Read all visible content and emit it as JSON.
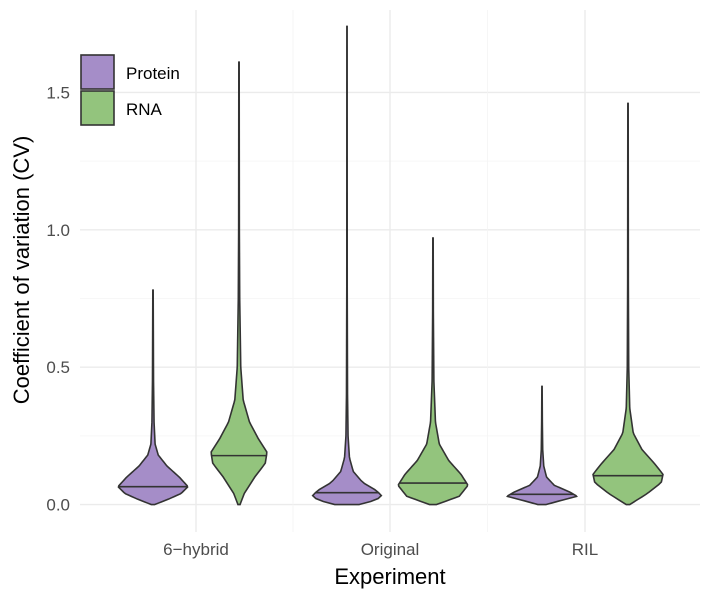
{
  "chart_data": {
    "type": "violin",
    "xlabel": "Experiment",
    "ylabel": "Coefficient of variation (CV)",
    "categories": [
      "6−hybrid",
      "Original",
      "RIL"
    ],
    "y_ticks": [
      "0.0",
      "0.5",
      "1.0",
      "1.5"
    ],
    "y_tick_values": [
      0.0,
      0.5,
      1.0,
      1.5
    ],
    "ylim": [
      -0.1,
      1.8
    ],
    "grid": true,
    "legend_position": "top-left",
    "series": [
      {
        "name": "Protein",
        "color": "#a58dc8",
        "violins": [
          {
            "category": "6−hybrid",
            "min": 0.0,
            "max": 0.78,
            "median": 0.065,
            "profile": [
              [
                0.0,
                0.05
              ],
              [
                0.02,
                0.45
              ],
              [
                0.04,
                0.8
              ],
              [
                0.065,
                1.0
              ],
              [
                0.1,
                0.75
              ],
              [
                0.14,
                0.4
              ],
              [
                0.18,
                0.15
              ],
              [
                0.22,
                0.06
              ],
              [
                0.3,
                0.03
              ],
              [
                0.45,
                0.015
              ],
              [
                0.78,
                0.005
              ]
            ]
          },
          {
            "category": "Original",
            "min": 0.0,
            "max": 1.74,
            "median": 0.043,
            "profile": [
              [
                0.0,
                0.35
              ],
              [
                0.015,
                0.8
              ],
              [
                0.03,
                1.0
              ],
              [
                0.05,
                0.85
              ],
              [
                0.08,
                0.45
              ],
              [
                0.12,
                0.18
              ],
              [
                0.17,
                0.07
              ],
              [
                0.25,
                0.03
              ],
              [
                0.4,
                0.015
              ],
              [
                0.8,
                0.006
              ],
              [
                1.74,
                0.004
              ]
            ]
          },
          {
            "category": "RIL",
            "min": 0.0,
            "max": 0.43,
            "median": 0.037,
            "profile": [
              [
                0.0,
                0.12
              ],
              [
                0.015,
                0.55
              ],
              [
                0.03,
                1.0
              ],
              [
                0.045,
                0.8
              ],
              [
                0.07,
                0.35
              ],
              [
                0.1,
                0.13
              ],
              [
                0.14,
                0.05
              ],
              [
                0.2,
                0.02
              ],
              [
                0.3,
                0.01
              ],
              [
                0.43,
                0.004
              ]
            ]
          }
        ]
      },
      {
        "name": "RNA",
        "color": "#93c47d",
        "violins": [
          {
            "category": "6−hybrid",
            "min": 0.0,
            "max": 1.61,
            "median": 0.178,
            "profile": [
              [
                0.0,
                0.03
              ],
              [
                0.04,
                0.15
              ],
              [
                0.1,
                0.45
              ],
              [
                0.15,
                0.75
              ],
              [
                0.19,
                0.8
              ],
              [
                0.24,
                0.55
              ],
              [
                0.3,
                0.3
              ],
              [
                0.38,
                0.12
              ],
              [
                0.5,
                0.05
              ],
              [
                0.75,
                0.02
              ],
              [
                1.0,
                0.01
              ],
              [
                1.61,
                0.005
              ]
            ]
          },
          {
            "category": "Original",
            "min": 0.0,
            "max": 0.97,
            "median": 0.078,
            "profile": [
              [
                0.0,
                0.1
              ],
              [
                0.03,
                0.75
              ],
              [
                0.07,
                1.0
              ],
              [
                0.11,
                0.8
              ],
              [
                0.16,
                0.45
              ],
              [
                0.22,
                0.18
              ],
              [
                0.3,
                0.07
              ],
              [
                0.45,
                0.025
              ],
              [
                0.7,
                0.01
              ],
              [
                0.97,
                0.005
              ]
            ]
          },
          {
            "category": "RIL",
            "min": 0.0,
            "max": 1.46,
            "median": 0.105,
            "profile": [
              [
                0.0,
                0.05
              ],
              [
                0.04,
                0.55
              ],
              [
                0.08,
                0.95
              ],
              [
                0.11,
                1.0
              ],
              [
                0.15,
                0.75
              ],
              [
                0.2,
                0.4
              ],
              [
                0.26,
                0.15
              ],
              [
                0.35,
                0.05
              ],
              [
                0.5,
                0.02
              ],
              [
                0.8,
                0.01
              ],
              [
                1.46,
                0.005
              ]
            ]
          }
        ]
      }
    ]
  }
}
